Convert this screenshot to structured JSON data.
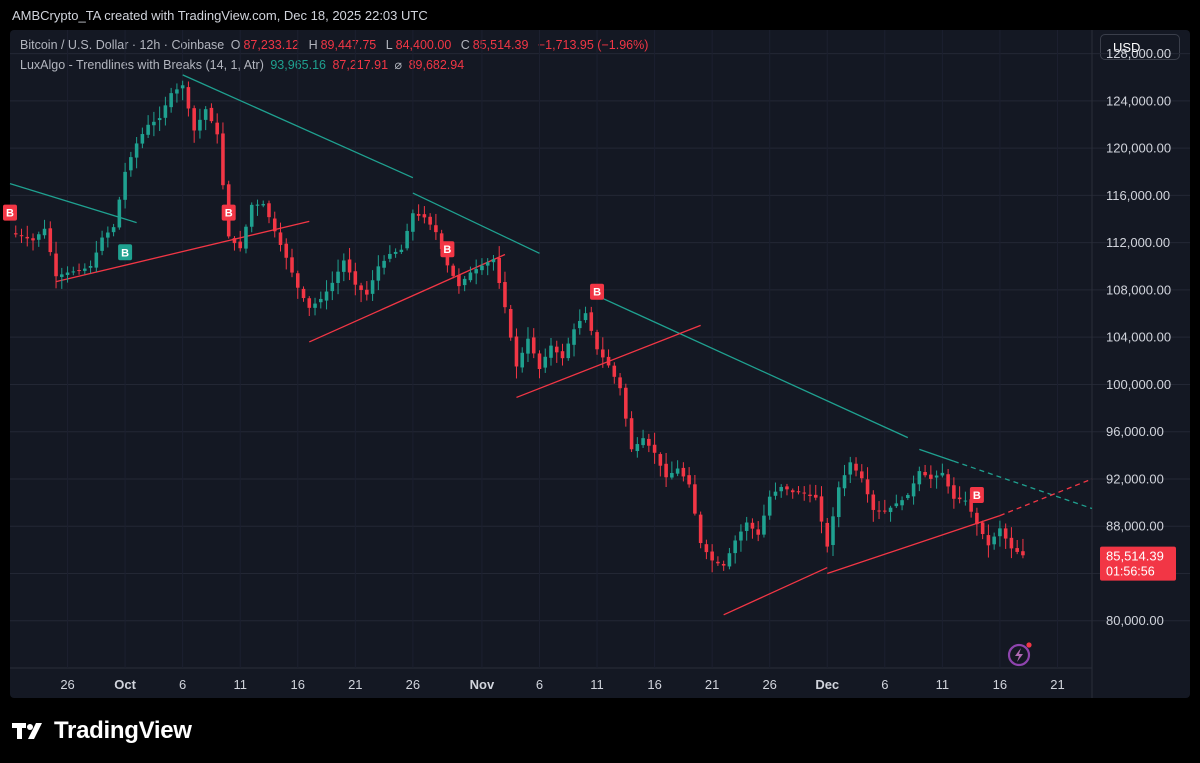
{
  "header": {
    "credit": "AMBCrypto_TA created with TradingView.com, Dec 18, 2025 22:03 UTC"
  },
  "legend": {
    "symbol": "Bitcoin / U.S. Dollar · 12h · Coinbase",
    "o_label": "O",
    "o_value": "87,233.12",
    "h_label": "H",
    "h_value": "89,447.75",
    "l_label": "L",
    "l_value": "84,400.00",
    "c_label": "C",
    "c_value": "85,514.39",
    "change": "−1,713.95 (−1.96%)",
    "indicator": "LuxAlgo - Trendlines with Breaks (14, 1, Atr)",
    "ind_v1": "93,965.16",
    "ind_v2": "87,217.91",
    "ind_sym": "⌀",
    "ind_v3": "89,682.94"
  },
  "currency_button": "USD",
  "price_tag": {
    "price": "85,514.39",
    "countdown": "01:56:56"
  },
  "footer": {
    "brand": "TradingView"
  },
  "colors": {
    "up": "#1fa190",
    "down": "#f23645",
    "background": "#141823"
  },
  "chart_data": {
    "type": "candlestick",
    "title": "Bitcoin / U.S. Dollar · 12h · Coinbase",
    "x_ticks": [
      "26",
      "Oct",
      "6",
      "11",
      "16",
      "21",
      "26",
      "Nov",
      "6",
      "11",
      "16",
      "21",
      "26",
      "Dec",
      "6",
      "11",
      "16",
      "21"
    ],
    "y_ticks": [
      80000,
      84000,
      88000,
      92000,
      96000,
      100000,
      104000,
      108000,
      112000,
      116000,
      120000,
      124000,
      128000
    ],
    "ylim": [
      76000,
      130000
    ],
    "x_range": [
      "2025-09-21",
      "2025-12-24"
    ],
    "currency": "USD",
    "last_price": 85514.39,
    "close_path": [
      [
        "2025-09-21",
        112800
      ],
      [
        "2025-09-22",
        112600
      ],
      [
        "2025-09-23",
        112200
      ],
      [
        "2025-09-24",
        113200
      ],
      [
        "2025-09-25",
        109200
      ],
      [
        "2025-09-26",
        109500
      ],
      [
        "2025-09-27",
        109600
      ],
      [
        "2025-09-28",
        110000
      ],
      [
        "2025-09-29",
        112400
      ],
      [
        "2025-09-30",
        113300
      ],
      [
        "2025-10-01",
        118000
      ],
      [
        "2025-10-02",
        120400
      ],
      [
        "2025-10-03",
        122000
      ],
      [
        "2025-10-04",
        122500
      ],
      [
        "2025-10-05",
        124700
      ],
      [
        "2025-10-06",
        125300
      ],
      [
        "2025-10-07",
        121500
      ],
      [
        "2025-10-08",
        123300
      ],
      [
        "2025-10-09",
        121200
      ],
      [
        "2025-10-10",
        112500
      ],
      [
        "2025-10-11",
        111500
      ],
      [
        "2025-10-12",
        115200
      ],
      [
        "2025-10-13",
        115300
      ],
      [
        "2025-10-14",
        113000
      ],
      [
        "2025-10-15",
        110700
      ],
      [
        "2025-10-16",
        108200
      ],
      [
        "2025-10-17",
        106500
      ],
      [
        "2025-10-18",
        107200
      ],
      [
        "2025-10-19",
        108600
      ],
      [
        "2025-10-20",
        110500
      ],
      [
        "2025-10-21",
        108400
      ],
      [
        "2025-10-22",
        107600
      ],
      [
        "2025-10-23",
        110000
      ],
      [
        "2025-10-24",
        111000
      ],
      [
        "2025-10-25",
        111400
      ],
      [
        "2025-10-26",
        114500
      ],
      [
        "2025-10-27",
        114100
      ],
      [
        "2025-10-28",
        112900
      ],
      [
        "2025-10-29",
        110100
      ],
      [
        "2025-10-30",
        108300
      ],
      [
        "2025-10-31",
        109500
      ],
      [
        "2025-11-01",
        110100
      ],
      [
        "2025-11-02",
        110600
      ],
      [
        "2025-11-03",
        106500
      ],
      [
        "2025-11-04",
        101500
      ],
      [
        "2025-11-05",
        103900
      ],
      [
        "2025-11-06",
        101300
      ],
      [
        "2025-11-07",
        103300
      ],
      [
        "2025-11-08",
        102200
      ],
      [
        "2025-11-09",
        104700
      ],
      [
        "2025-11-10",
        106000
      ],
      [
        "2025-11-11",
        103000
      ],
      [
        "2025-11-12",
        101600
      ],
      [
        "2025-11-13",
        99700
      ],
      [
        "2025-11-14",
        94500
      ],
      [
        "2025-11-15",
        95500
      ],
      [
        "2025-11-16",
        94200
      ],
      [
        "2025-11-17",
        92100
      ],
      [
        "2025-11-18",
        92900
      ],
      [
        "2025-11-19",
        91500
      ],
      [
        "2025-11-20",
        86600
      ],
      [
        "2025-11-21",
        85100
      ],
      [
        "2025-11-22",
        84700
      ],
      [
        "2025-11-23",
        86800
      ],
      [
        "2025-11-24",
        88300
      ],
      [
        "2025-11-25",
        87300
      ],
      [
        "2025-11-26",
        90500
      ],
      [
        "2025-11-27",
        91300
      ],
      [
        "2025-11-28",
        90900
      ],
      [
        "2025-11-29",
        90800
      ],
      [
        "2025-11-30",
        90400
      ],
      [
        "2025-12-01",
        86300
      ],
      [
        "2025-12-02",
        91300
      ],
      [
        "2025-12-03",
        93400
      ],
      [
        "2025-12-04",
        92100
      ],
      [
        "2025-12-05",
        89400
      ],
      [
        "2025-12-06",
        89300
      ],
      [
        "2025-12-07",
        89900
      ],
      [
        "2025-12-08",
        90600
      ],
      [
        "2025-12-09",
        92700
      ],
      [
        "2025-12-10",
        92000
      ],
      [
        "2025-12-11",
        92500
      ],
      [
        "2025-12-12",
        90300
      ],
      [
        "2025-12-13",
        90200
      ],
      [
        "2025-12-14",
        88200
      ],
      [
        "2025-12-15",
        86400
      ],
      [
        "2025-12-16",
        87800
      ],
      [
        "2025-12-17",
        86100
      ],
      [
        "2025-12-18",
        85514
      ]
    ],
    "trendlines": [
      {
        "color": "#1fa190",
        "style": "solid",
        "points": [
          [
            "2025-09-21",
            117000
          ],
          [
            "2025-10-02",
            113700
          ]
        ]
      },
      {
        "color": "#1fa190",
        "style": "solid",
        "points": [
          [
            "2025-10-06",
            126200
          ],
          [
            "2025-10-26",
            117500
          ]
        ]
      },
      {
        "color": "#1fa190",
        "style": "solid",
        "points": [
          [
            "2025-10-26",
            116200
          ],
          [
            "2025-11-06",
            111100
          ]
        ]
      },
      {
        "color": "#1fa190",
        "style": "solid",
        "points": [
          [
            "2025-11-11",
            107500
          ],
          [
            "2025-12-08",
            95500
          ]
        ]
      },
      {
        "color": "#1fa190",
        "style": "solid",
        "points": [
          [
            "2025-12-09",
            94500
          ],
          [
            "2025-12-12",
            93500
          ]
        ]
      },
      {
        "color": "#1fa190",
        "style": "dashed",
        "points": [
          [
            "2025-12-12",
            93500
          ],
          [
            "2025-12-24",
            89500
          ]
        ]
      },
      {
        "color": "#f23645",
        "style": "solid",
        "points": [
          [
            "2025-09-25",
            108700
          ],
          [
            "2025-10-17",
            113800
          ]
        ]
      },
      {
        "color": "#f23645",
        "style": "solid",
        "points": [
          [
            "2025-10-17",
            103600
          ],
          [
            "2025-11-03",
            111000
          ]
        ]
      },
      {
        "color": "#f23645",
        "style": "solid",
        "points": [
          [
            "2025-11-04",
            98900
          ],
          [
            "2025-11-20",
            105000
          ]
        ]
      },
      {
        "color": "#f23645",
        "style": "solid",
        "points": [
          [
            "2025-11-22",
            80500
          ],
          [
            "2025-12-01",
            84500
          ]
        ]
      },
      {
        "color": "#f23645",
        "style": "solid",
        "points": [
          [
            "2025-12-01",
            84000
          ],
          [
            "2025-12-16",
            88900
          ]
        ]
      },
      {
        "color": "#f23645",
        "style": "dashed",
        "points": [
          [
            "2025-12-16",
            88900
          ],
          [
            "2025-12-24",
            92000
          ]
        ]
      }
    ],
    "markers": [
      {
        "label": "B",
        "date": "2025-09-21",
        "price": 113700,
        "color": "#f23645",
        "position": "above"
      },
      {
        "label": "B",
        "date": "2025-10-01",
        "price": 112200,
        "color": "#1fa190",
        "position": "below"
      },
      {
        "label": "B",
        "date": "2025-10-10",
        "price": 113700,
        "color": "#f23645",
        "position": "above"
      },
      {
        "label": "B",
        "date": "2025-10-29",
        "price": 110600,
        "color": "#f23645",
        "position": "above"
      },
      {
        "label": "B",
        "date": "2025-11-11",
        "price": 107000,
        "color": "#f23645",
        "position": "above"
      },
      {
        "label": "B",
        "date": "2025-12-14",
        "price": 89800,
        "color": "#f23645",
        "position": "above"
      }
    ]
  }
}
